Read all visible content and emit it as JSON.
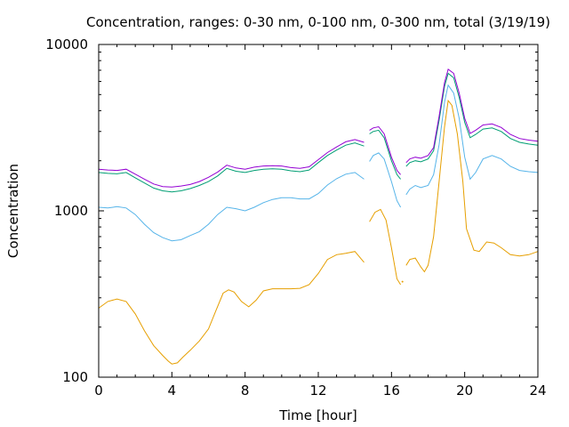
{
  "chart_data": {
    "type": "line",
    "title": "Concentration, ranges: 0-30 nm, 0-100 nm, 0-300 nm, total (3/19/19)",
    "xlabel": "Time [hour]",
    "ylabel": "Concentration",
    "xlim": [
      0,
      24
    ],
    "ylim": [
      100,
      10000
    ],
    "yscale": "log",
    "x_ticks": [
      0,
      4,
      8,
      12,
      16,
      20,
      24
    ],
    "x_tick_labels": [
      "0",
      "4",
      "8",
      "12",
      "16",
      "20",
      "24"
    ],
    "y_ticks": [
      100,
      1000,
      10000
    ],
    "y_tick_labels": [
      "100",
      "1000",
      "10000"
    ],
    "grid": false,
    "legend": "none",
    "series": [
      {
        "color": "#e69f00",
        "segments": [
          [
            [
              0,
              260
            ],
            [
              0.5,
              285
            ],
            [
              1,
              295
            ],
            [
              1.5,
              285
            ],
            [
              2,
              240
            ],
            [
              2.5,
              190
            ],
            [
              3,
              155
            ],
            [
              3.5,
              135
            ],
            [
              3.8,
              125
            ],
            [
              4,
              120
            ],
            [
              4.3,
              122
            ],
            [
              4.6,
              132
            ],
            [
              5,
              145
            ],
            [
              5.5,
              165
            ],
            [
              6,
              195
            ],
            [
              6.4,
              250
            ],
            [
              6.8,
              320
            ],
            [
              7.1,
              335
            ],
            [
              7.4,
              325
            ],
            [
              7.8,
              285
            ],
            [
              8.2,
              265
            ],
            [
              8.6,
              290
            ],
            [
              9,
              330
            ],
            [
              9.5,
              340
            ],
            [
              10,
              340
            ],
            [
              10.5,
              340
            ],
            [
              11,
              342
            ],
            [
              11.5,
              360
            ],
            [
              12,
              420
            ],
            [
              12.5,
              510
            ],
            [
              13,
              545
            ],
            [
              13.5,
              555
            ],
            [
              14,
              570
            ],
            [
              14.5,
              490
            ]
          ],
          [
            [
              14.8,
              860
            ],
            [
              15.1,
              980
            ],
            [
              15.4,
              1020
            ],
            [
              15.7,
              880
            ],
            [
              16,
              600
            ],
            [
              16.3,
              390
            ],
            [
              16.5,
              360
            ]
          ],
          [
            [
              16.6,
              375
            ]
          ],
          [
            [
              16.8,
              470
            ],
            [
              17,
              510
            ],
            [
              17.3,
              520
            ],
            [
              17.6,
              460
            ],
            [
              17.8,
              430
            ],
            [
              18,
              470
            ],
            [
              18.3,
              700
            ],
            [
              18.6,
              1500
            ],
            [
              18.9,
              3200
            ],
            [
              19.1,
              4600
            ],
            [
              19.3,
              4300
            ],
            [
              19.6,
              2900
            ],
            [
              19.9,
              1500
            ],
            [
              20.1,
              780
            ],
            [
              20.5,
              580
            ],
            [
              20.8,
              570
            ],
            [
              21.2,
              650
            ],
            [
              21.6,
              640
            ],
            [
              22,
              600
            ],
            [
              22.5,
              545
            ],
            [
              23,
              535
            ],
            [
              23.5,
              545
            ],
            [
              24,
              570
            ]
          ]
        ]
      },
      {
        "color": "#56b4e9",
        "segments": [
          [
            [
              0,
              1050
            ],
            [
              0.5,
              1040
            ],
            [
              1,
              1060
            ],
            [
              1.5,
              1040
            ],
            [
              2,
              950
            ],
            [
              2.5,
              830
            ],
            [
              3,
              740
            ],
            [
              3.5,
              690
            ],
            [
              4,
              660
            ],
            [
              4.5,
              670
            ],
            [
              5,
              710
            ],
            [
              5.5,
              750
            ],
            [
              6,
              830
            ],
            [
              6.5,
              950
            ],
            [
              7,
              1050
            ],
            [
              7.5,
              1030
            ],
            [
              8,
              1000
            ],
            [
              8.5,
              1050
            ],
            [
              9,
              1120
            ],
            [
              9.5,
              1170
            ],
            [
              10,
              1200
            ],
            [
              10.5,
              1200
            ],
            [
              11,
              1180
            ],
            [
              11.5,
              1180
            ],
            [
              12,
              1270
            ],
            [
              12.5,
              1430
            ],
            [
              13,
              1560
            ],
            [
              13.5,
              1660
            ],
            [
              14,
              1700
            ],
            [
              14.5,
              1550
            ]
          ],
          [
            [
              14.8,
              1980
            ],
            [
              15,
              2150
            ],
            [
              15.3,
              2230
            ],
            [
              15.6,
              2050
            ],
            [
              16,
              1500
            ],
            [
              16.3,
              1150
            ],
            [
              16.5,
              1050
            ]
          ],
          [
            [
              16.8,
              1250
            ],
            [
              17,
              1350
            ],
            [
              17.3,
              1420
            ],
            [
              17.6,
              1380
            ],
            [
              18,
              1420
            ],
            [
              18.3,
              1650
            ],
            [
              18.6,
              2500
            ],
            [
              18.9,
              4500
            ],
            [
              19.1,
              5700
            ],
            [
              19.4,
              5100
            ],
            [
              19.7,
              3600
            ],
            [
              20,
              2100
            ],
            [
              20.3,
              1550
            ],
            [
              20.6,
              1700
            ],
            [
              21,
              2050
            ],
            [
              21.5,
              2150
            ],
            [
              22,
              2050
            ],
            [
              22.5,
              1850
            ],
            [
              23,
              1750
            ],
            [
              23.5,
              1720
            ],
            [
              24,
              1700
            ]
          ]
        ]
      },
      {
        "color": "#009e73",
        "segments": [
          [
            [
              0,
              1700
            ],
            [
              0.5,
              1680
            ],
            [
              1,
              1670
            ],
            [
              1.5,
              1700
            ],
            [
              2,
              1580
            ],
            [
              2.5,
              1470
            ],
            [
              3,
              1370
            ],
            [
              3.5,
              1320
            ],
            [
              4,
              1300
            ],
            [
              4.5,
              1320
            ],
            [
              5,
              1360
            ],
            [
              5.5,
              1420
            ],
            [
              6,
              1500
            ],
            [
              6.5,
              1620
            ],
            [
              7,
              1800
            ],
            [
              7.5,
              1730
            ],
            [
              8,
              1700
            ],
            [
              8.5,
              1750
            ],
            [
              9,
              1780
            ],
            [
              9.5,
              1790
            ],
            [
              10,
              1780
            ],
            [
              10.5,
              1740
            ],
            [
              11,
              1720
            ],
            [
              11.5,
              1760
            ],
            [
              12,
              1950
            ],
            [
              12.5,
              2150
            ],
            [
              13,
              2320
            ],
            [
              13.5,
              2480
            ],
            [
              14,
              2560
            ],
            [
              14.5,
              2450
            ]
          ],
          [
            [
              14.8,
              2900
            ],
            [
              15,
              3000
            ],
            [
              15.3,
              3050
            ],
            [
              15.6,
              2750
            ],
            [
              16,
              2000
            ],
            [
              16.3,
              1650
            ],
            [
              16.5,
              1550
            ]
          ],
          [
            [
              16.8,
              1850
            ],
            [
              17,
              1950
            ],
            [
              17.3,
              2000
            ],
            [
              17.6,
              1970
            ],
            [
              18,
              2050
            ],
            [
              18.3,
              2300
            ],
            [
              18.6,
              3500
            ],
            [
              18.9,
              5600
            ],
            [
              19.1,
              6700
            ],
            [
              19.4,
              6300
            ],
            [
              19.7,
              4800
            ],
            [
              20,
              3400
            ],
            [
              20.3,
              2750
            ],
            [
              20.6,
              2880
            ],
            [
              21,
              3100
            ],
            [
              21.5,
              3150
            ],
            [
              22,
              3000
            ],
            [
              22.5,
              2720
            ],
            [
              23,
              2580
            ],
            [
              23.5,
              2520
            ],
            [
              24,
              2480
            ]
          ]
        ]
      },
      {
        "color": "#9400d3",
        "segments": [
          [
            [
              0,
              1780
            ],
            [
              0.5,
              1760
            ],
            [
              1,
              1750
            ],
            [
              1.5,
              1780
            ],
            [
              2,
              1660
            ],
            [
              2.5,
              1550
            ],
            [
              3,
              1450
            ],
            [
              3.5,
              1400
            ],
            [
              4,
              1390
            ],
            [
              4.5,
              1410
            ],
            [
              5,
              1440
            ],
            [
              5.5,
              1500
            ],
            [
              6,
              1590
            ],
            [
              6.5,
              1710
            ],
            [
              7,
              1880
            ],
            [
              7.5,
              1810
            ],
            [
              8,
              1780
            ],
            [
              8.5,
              1830
            ],
            [
              9,
              1860
            ],
            [
              9.5,
              1870
            ],
            [
              10,
              1860
            ],
            [
              10.5,
              1820
            ],
            [
              11,
              1800
            ],
            [
              11.5,
              1840
            ],
            [
              12,
              2030
            ],
            [
              12.5,
              2240
            ],
            [
              13,
              2420
            ],
            [
              13.5,
              2600
            ],
            [
              14,
              2680
            ],
            [
              14.5,
              2580
            ]
          ],
          [
            [
              14.8,
              3050
            ],
            [
              15,
              3150
            ],
            [
              15.3,
              3200
            ],
            [
              15.6,
              2900
            ],
            [
              16,
              2100
            ],
            [
              16.3,
              1750
            ],
            [
              16.5,
              1650
            ]
          ],
          [
            [
              16.8,
              1950
            ],
            [
              17,
              2050
            ],
            [
              17.3,
              2100
            ],
            [
              17.6,
              2070
            ],
            [
              18,
              2150
            ],
            [
              18.3,
              2400
            ],
            [
              18.6,
              3700
            ],
            [
              18.9,
              5900
            ],
            [
              19.1,
              7100
            ],
            [
              19.4,
              6700
            ],
            [
              19.7,
              5100
            ],
            [
              20,
              3600
            ],
            [
              20.3,
              2920
            ],
            [
              20.6,
              3050
            ],
            [
              21,
              3280
            ],
            [
              21.5,
              3330
            ],
            [
              22,
              3170
            ],
            [
              22.5,
              2880
            ],
            [
              23,
              2720
            ],
            [
              23.5,
              2660
            ],
            [
              24,
              2620
            ]
          ]
        ]
      }
    ]
  }
}
